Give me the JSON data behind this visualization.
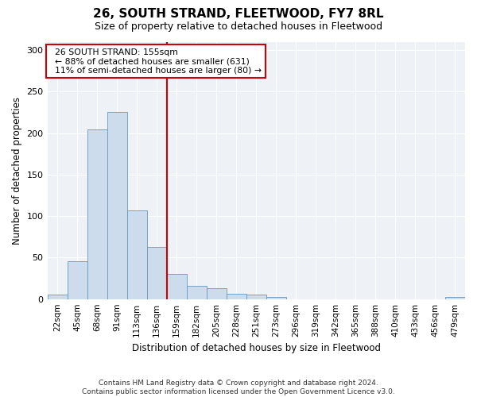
{
  "title": "26, SOUTH STRAND, FLEETWOOD, FY7 8RL",
  "subtitle": "Size of property relative to detached houses in Fleetwood",
  "xlabel": "Distribution of detached houses by size in Fleetwood",
  "ylabel": "Number of detached properties",
  "footer_line1": "Contains HM Land Registry data © Crown copyright and database right 2024.",
  "footer_line2": "Contains public sector information licensed under the Open Government Licence v3.0.",
  "bar_labels": [
    "22sqm",
    "45sqm",
    "68sqm",
    "91sqm",
    "113sqm",
    "136sqm",
    "159sqm",
    "182sqm",
    "205sqm",
    "228sqm",
    "251sqm",
    "273sqm",
    "296sqm",
    "319sqm",
    "342sqm",
    "365sqm",
    "388sqm",
    "410sqm",
    "433sqm",
    "456sqm",
    "479sqm"
  ],
  "bar_values": [
    5,
    46,
    204,
    225,
    107,
    63,
    30,
    16,
    13,
    6,
    5,
    3,
    0,
    0,
    0,
    0,
    0,
    0,
    0,
    0,
    3
  ],
  "bar_color": "#ccdcec",
  "bar_edge_color": "#6699bb",
  "property_label": "26 SOUTH STRAND: 155sqm",
  "pct_smaller": 88,
  "count_smaller": 631,
  "pct_larger": 11,
  "count_larger": 80,
  "vline_color": "#cc0000",
  "vline_bin_index": 6,
  "annotation_box_color": "#cc0000",
  "ylim": [
    0,
    310
  ],
  "yticks": [
    0,
    50,
    100,
    150,
    200,
    250,
    300
  ],
  "background_color": "#ffffff",
  "plot_background_color": "#eef2f7",
  "title_fontsize": 11,
  "subtitle_fontsize": 9
}
